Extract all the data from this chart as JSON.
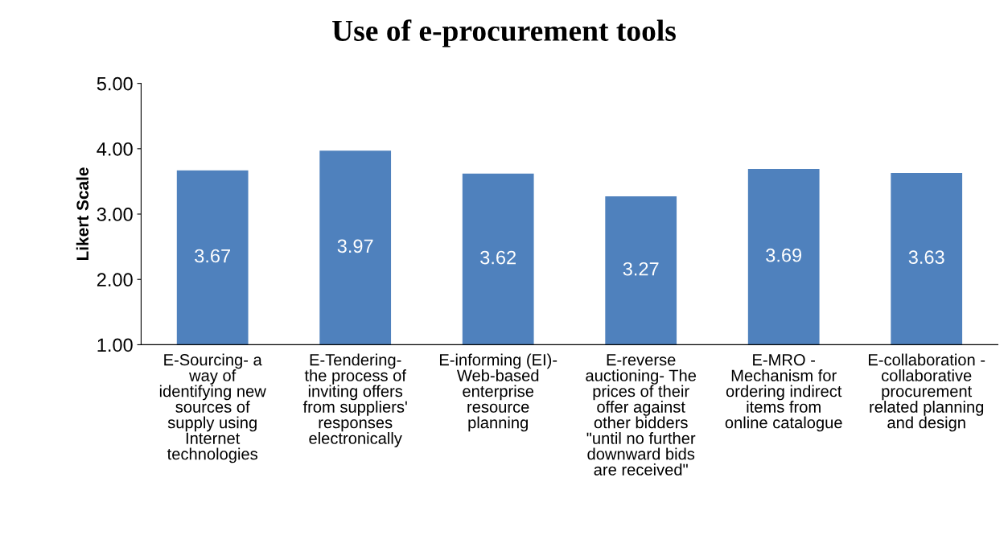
{
  "chart_data": {
    "type": "bar",
    "title": "Use of e-procurement tools",
    "ylabel": "Likert Scale",
    "categories": [
      "E-Sourcing- a\nway of\nidentifying new\nsources of\nsupply using\nInternet\ntechnologies",
      "E-Tendering-\nthe process of\ninviting offers\nfrom suppliers'\nresponses\nelectronically",
      "E-informing (EI)-\nWeb-based\nenterprise\nresource\nplanning",
      "E-reverse\nauctioning- The\nprices of their\noffer against\nother bidders\n\"until no further\ndownward bids\nare received\"",
      "E-MRO -\nMechanism for\nordering indirect\nitems from\nonline catalogue",
      "E-collaboration -\ncollaborative\nprocurement\nrelated planning\nand design"
    ],
    "values": [
      3.67,
      3.97,
      3.62,
      3.27,
      3.69,
      3.63
    ],
    "color": "#4f81bd",
    "ylim": [
      1,
      5
    ],
    "yticks": [
      {
        "value": 1,
        "label": "1.00"
      },
      {
        "value": 2,
        "label": "2.00"
      },
      {
        "value": 3,
        "label": "3.00"
      },
      {
        "value": 4,
        "label": "4.00"
      },
      {
        "value": 5,
        "label": "5.00"
      }
    ],
    "data_labels": true,
    "grid": false,
    "legend": false
  }
}
